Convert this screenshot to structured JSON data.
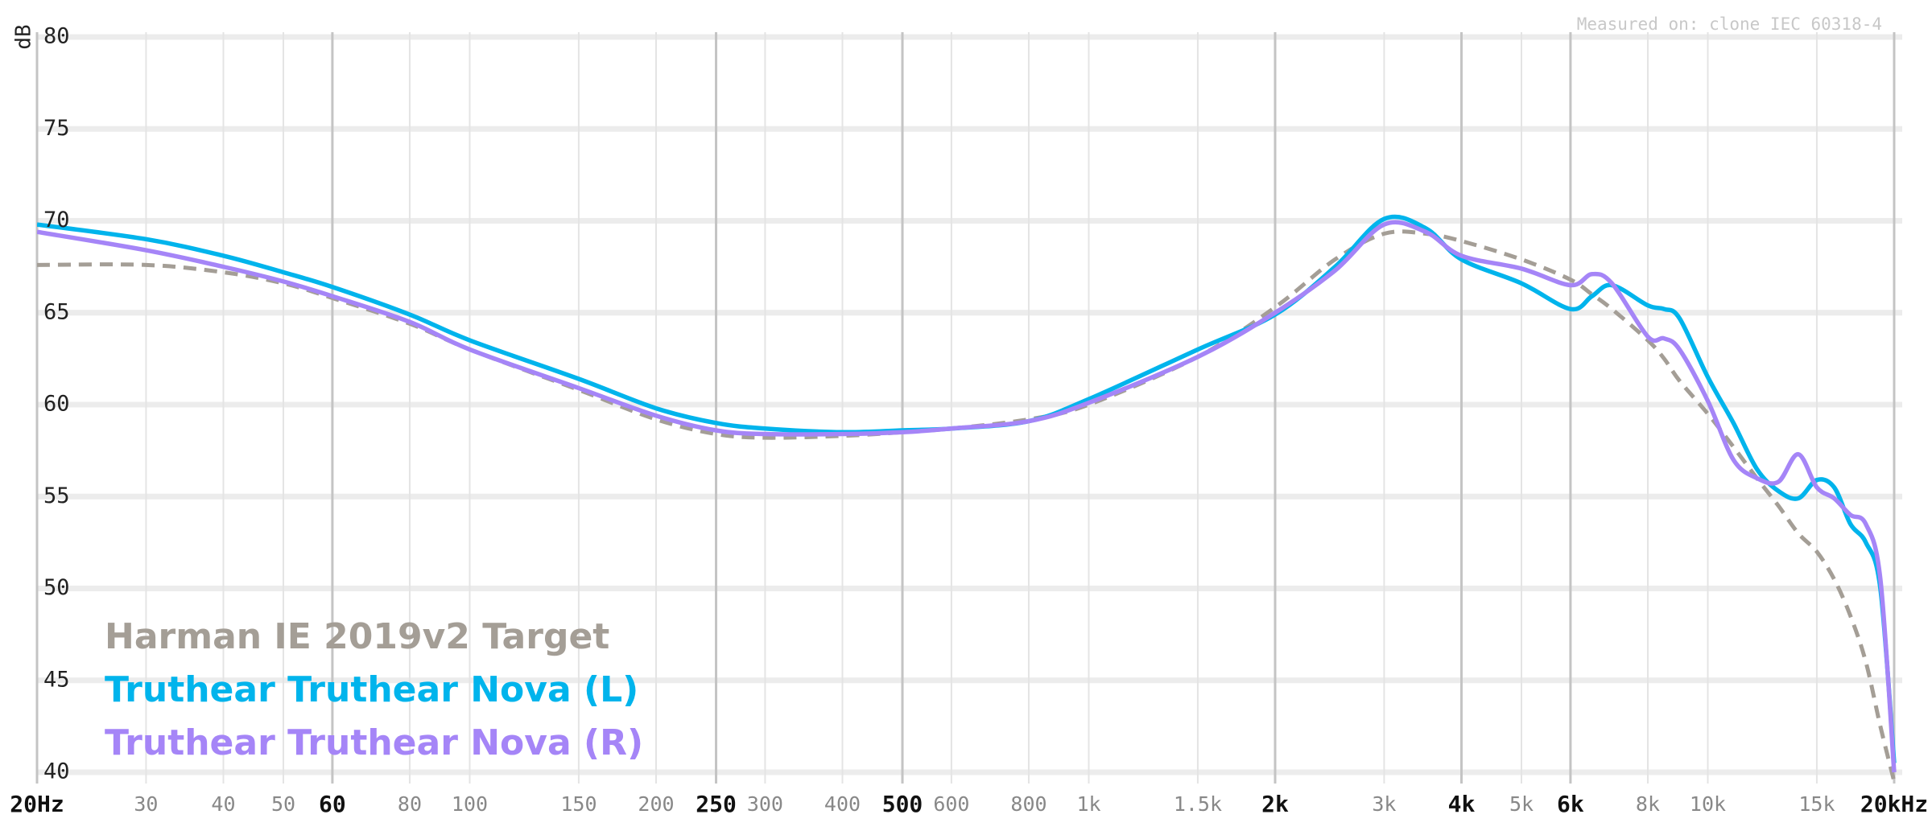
{
  "chart_data": {
    "type": "line",
    "y_label": "dB",
    "annotation": "Measured on: clone IEC 60318-4",
    "log_x": true,
    "grid": true,
    "legend": "bottom-left",
    "xlim": [
      20,
      20000
    ],
    "ylim": [
      40,
      80
    ],
    "yticks": [
      40,
      45,
      50,
      55,
      60,
      65,
      70,
      75,
      80
    ],
    "xticks": [
      {
        "value": 20,
        "label": "20Hz"
      },
      30,
      40,
      50,
      60,
      80,
      100,
      150,
      200,
      250,
      300,
      400,
      500,
      600,
      800,
      {
        "value": 1000,
        "label": "1k"
      },
      {
        "value": 1500,
        "label": "1.5k"
      },
      {
        "value": 2000,
        "label": "2k"
      },
      {
        "value": 3000,
        "label": "3k"
      },
      {
        "value": 4000,
        "label": "4k"
      },
      {
        "value": 5000,
        "label": "5k"
      },
      {
        "value": 6000,
        "label": "6k"
      },
      {
        "value": 8000,
        "label": "8k"
      },
      {
        "value": 10000,
        "label": "10k"
      },
      {
        "value": 15000,
        "label": "15k"
      },
      {
        "value": 20000,
        "label": "20kHz"
      }
    ],
    "bold_xticks": [
      20,
      60,
      250,
      500,
      2000,
      4000,
      6000,
      20000
    ],
    "x": [
      20,
      30,
      40,
      50,
      60,
      80,
      100,
      150,
      200,
      250,
      300,
      400,
      500,
      600,
      800,
      1000,
      1500,
      2000,
      2500,
      3000,
      3500,
      4000,
      5000,
      6000,
      6500,
      7000,
      8000,
      8500,
      9000,
      10000,
      11000,
      12000,
      13000,
      14000,
      15000,
      16000,
      17000,
      18000,
      19000,
      20000
    ],
    "series": [
      {
        "name": "Harman IE 2019v2 Target",
        "color": "#a49e96",
        "dashed": true,
        "values": [
          67.6,
          67.6,
          67.2,
          66.6,
          65.8,
          64.4,
          63.0,
          60.8,
          59.2,
          58.4,
          58.2,
          58.3,
          58.5,
          58.7,
          59.2,
          60.0,
          62.6,
          65.3,
          67.9,
          69.3,
          69.3,
          68.9,
          67.9,
          66.8,
          66.0,
          65.2,
          63.5,
          62.5,
          61.3,
          59.5,
          57.7,
          56.0,
          54.5,
          53.0,
          52.0,
          50.5,
          48.5,
          46.0,
          42.5,
          39.5
        ]
      },
      {
        "name": "Truthear Truthear Nova (L)",
        "color": "#00b4ec",
        "values": [
          69.8,
          69.0,
          68.1,
          67.2,
          66.4,
          64.9,
          63.5,
          61.4,
          59.8,
          59.0,
          58.7,
          58.5,
          58.6,
          58.7,
          59.1,
          60.3,
          63.0,
          64.9,
          67.5,
          70.1,
          69.6,
          67.9,
          66.6,
          65.2,
          65.9,
          66.5,
          65.4,
          65.2,
          64.7,
          61.5,
          59.0,
          56.5,
          55.3,
          54.9,
          55.9,
          55.5,
          53.5,
          52.5,
          50.0,
          40.5
        ]
      },
      {
        "name": "Truthear Truthear Nova (R)",
        "color": "#a585f7",
        "values": [
          69.4,
          68.4,
          67.5,
          66.7,
          65.9,
          64.5,
          63.0,
          60.9,
          59.4,
          58.6,
          58.4,
          58.4,
          58.5,
          58.7,
          59.1,
          60.1,
          62.6,
          65.0,
          67.3,
          69.8,
          69.4,
          68.1,
          67.4,
          66.5,
          67.1,
          66.6,
          63.7,
          63.6,
          63.0,
          60.2,
          57.0,
          56.0,
          55.8,
          57.3,
          55.5,
          54.9,
          54.0,
          53.5,
          50.5,
          40.0
        ]
      }
    ]
  }
}
